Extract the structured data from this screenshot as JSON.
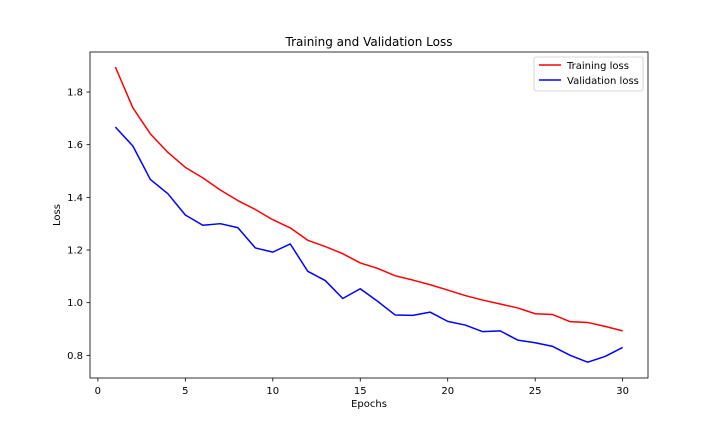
{
  "chart_data": {
    "type": "line",
    "title": "Training and Validation Loss",
    "xlabel": "Epochs",
    "ylabel": "Loss",
    "xlim": [
      -0.45,
      31.45
    ],
    "ylim": [
      0.714,
      1.952
    ],
    "xticks": [
      0,
      5,
      10,
      15,
      20,
      25,
      30
    ],
    "yticks": [
      0.8,
      1.0,
      1.2,
      1.4,
      1.6,
      1.8
    ],
    "xtick_labels": [
      "0",
      "5",
      "10",
      "15",
      "20",
      "25",
      "30"
    ],
    "ytick_labels": [
      "0.8",
      "1.0",
      "1.2",
      "1.4",
      "1.6",
      "1.8"
    ],
    "grid": false,
    "legend_position": "top-right",
    "x": [
      1,
      2,
      3,
      4,
      5,
      6,
      7,
      8,
      9,
      10,
      11,
      12,
      13,
      14,
      15,
      16,
      17,
      18,
      19,
      20,
      21,
      22,
      23,
      24,
      25,
      26,
      27,
      28,
      29,
      30
    ],
    "series": [
      {
        "name": "Training loss",
        "color": "#ff0000",
        "values": [
          1.895,
          1.74,
          1.641,
          1.571,
          1.514,
          1.474,
          1.428,
          1.388,
          1.354,
          1.315,
          1.284,
          1.237,
          1.213,
          1.186,
          1.151,
          1.13,
          1.102,
          1.086,
          1.068,
          1.048,
          1.027,
          1.01,
          0.995,
          0.98,
          0.958,
          0.955,
          0.928,
          0.925,
          0.91,
          0.893
        ]
      },
      {
        "name": "Validation loss",
        "color": "#0000ff",
        "values": [
          1.667,
          1.595,
          1.468,
          1.414,
          1.333,
          1.294,
          1.3,
          1.285,
          1.208,
          1.192,
          1.223,
          1.119,
          1.084,
          1.016,
          1.053,
          1.005,
          0.953,
          0.952,
          0.964,
          0.929,
          0.915,
          0.89,
          0.893,
          0.858,
          0.848,
          0.834,
          0.8,
          0.774,
          0.796,
          0.83
        ]
      }
    ]
  }
}
